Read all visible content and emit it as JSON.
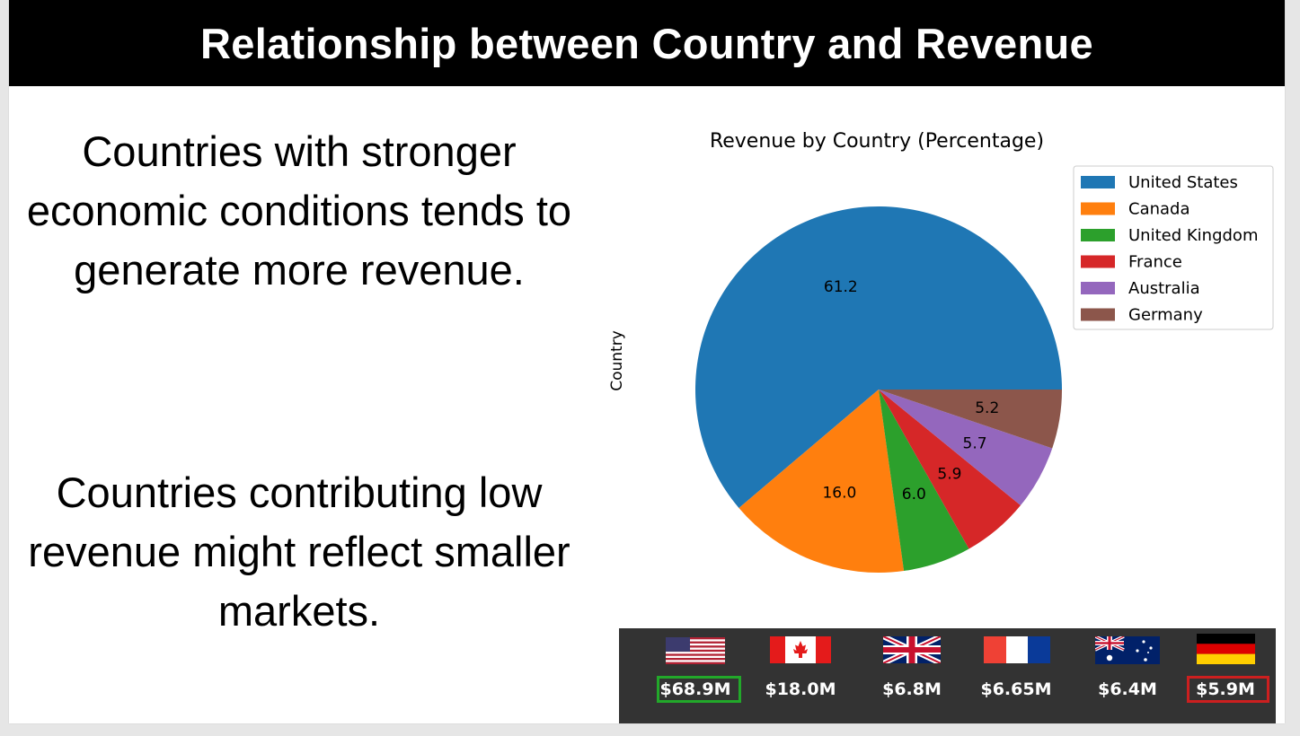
{
  "slide": {
    "title": "Relationship between Country and Revenue",
    "paragraph_1": "Countries with stronger economic conditions tends to generate more revenue.",
    "paragraph_2": "Countries contributing low revenue might reflect smaller markets."
  },
  "chart_data": {
    "type": "pie",
    "title": "Revenue by Country (Percentage)",
    "ylabel": "Country",
    "legend_position": "top-right",
    "categories": [
      "United States",
      "Canada",
      "United Kingdom",
      "France",
      "Australia",
      "Germany"
    ],
    "values": [
      61.2,
      16.0,
      6.0,
      5.9,
      5.7,
      5.2
    ],
    "value_labels": [
      "61.2",
      "16.0",
      "6.0",
      "5.9",
      "5.7",
      "5.2"
    ],
    "colors": [
      "#1f77b4",
      "#ff7f0e",
      "#2ca02c",
      "#d62728",
      "#9467bd",
      "#8c564b"
    ]
  },
  "revenue_panel": {
    "items": [
      {
        "flag": "united-states-flag-icon",
        "amount": "$68.9M",
        "highlight": "#22a82a"
      },
      {
        "flag": "canada-flag-icon",
        "amount": "$18.0M",
        "highlight": ""
      },
      {
        "flag": "united-kingdom-flag-icon",
        "amount": "$6.8M",
        "highlight": ""
      },
      {
        "flag": "france-flag-icon",
        "amount": "$6.65M",
        "highlight": ""
      },
      {
        "flag": "australia-flag-icon",
        "amount": "$6.4M",
        "highlight": ""
      },
      {
        "flag": "germany-flag-icon",
        "amount": "$5.9M",
        "highlight": "#cc1f1f"
      }
    ]
  }
}
